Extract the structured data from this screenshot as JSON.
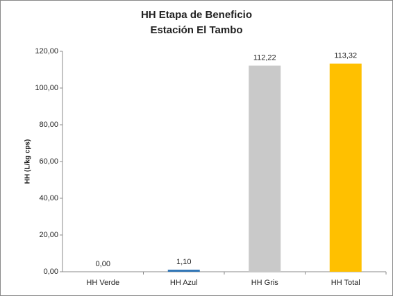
{
  "chart_data": {
    "type": "bar",
    "title": "HH Etapa de Beneficio",
    "subtitle": "Estación El Tambo",
    "y_label": "HH (L/kg cps)",
    "categories": [
      "HH Verde",
      "HH Azul",
      "HH Gris",
      "HH Total"
    ],
    "values": [
      0,
      1.1,
      112.22,
      113.32
    ],
    "value_labels": [
      "0,00",
      "1,10",
      "112,22",
      "113,32"
    ],
    "colors": [
      "#70ad47",
      "#2e75b6",
      "#c9c9c9",
      "#ffc000"
    ],
    "ylim": [
      0,
      120
    ],
    "yticks": [
      {
        "value": 0,
        "label": "0,00"
      },
      {
        "value": 20,
        "label": "20,00"
      },
      {
        "value": 40,
        "label": "40,00"
      },
      {
        "value": 60,
        "label": "60,00"
      },
      {
        "value": 80,
        "label": "80,00"
      },
      {
        "value": 100,
        "label": "100,00"
      },
      {
        "value": 120,
        "label": "120,00"
      }
    ],
    "grid": false
  }
}
